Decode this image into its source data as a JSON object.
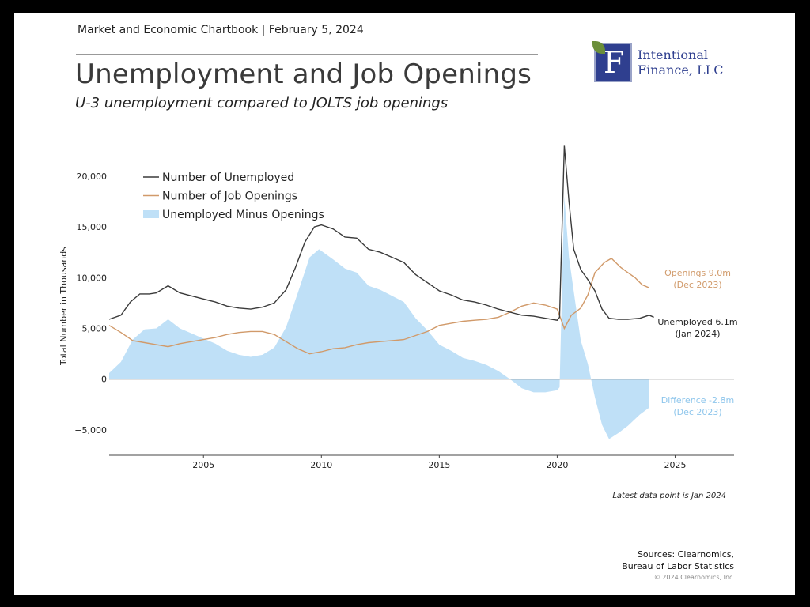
{
  "header": {
    "chartbook": "Market and Economic Chartbook | February 5, 2024",
    "title": "Unemployment and Job Openings",
    "subtitle": "U-3 unemployment compared to JOLTS job openings"
  },
  "logo": {
    "mark": "F",
    "line1": "Intentional",
    "line2": "Finance, LLC"
  },
  "footer": {
    "note": "Latest data point is Jan 2024",
    "sources_line1": "Sources: Clearnomics,",
    "sources_line2": "Bureau of Labor Statistics",
    "copyright": "© 2024 Clearnomics, Inc."
  },
  "colors": {
    "unemployed": "#3a3a3a",
    "openings": "#d19a6a",
    "difference": "#bfe0f7",
    "difference_label": "#8ec6ec"
  },
  "chart_data": {
    "type": "line",
    "ylabel": "Total Number in Thousands",
    "xlabel": "",
    "xlim": [
      2001.0,
      2027.5
    ],
    "ylim": [
      -7500,
      23500
    ],
    "x_ticks": [
      2005,
      2010,
      2015,
      2020,
      2025
    ],
    "y_ticks": [
      -5000,
      0,
      5000,
      10000,
      15000,
      20000
    ],
    "y_tick_labels": [
      "−5,000",
      "0",
      "5,000",
      "10,000",
      "15,000",
      "20,000"
    ],
    "grid": false,
    "legend": {
      "position": "top-left",
      "entries": [
        "Number of Unemployed",
        "Number of Job Openings",
        "Unemployed Minus Openings"
      ]
    },
    "series": [
      {
        "name": "Number of Unemployed",
        "points": [
          [
            2001.0,
            5900
          ],
          [
            2001.5,
            6300
          ],
          [
            2001.9,
            7600
          ],
          [
            2002.3,
            8400
          ],
          [
            2002.7,
            8400
          ],
          [
            2003.0,
            8500
          ],
          [
            2003.5,
            9200
          ],
          [
            2004.0,
            8500
          ],
          [
            2004.5,
            8200
          ],
          [
            2005.0,
            7900
          ],
          [
            2005.5,
            7600
          ],
          [
            2006.0,
            7200
          ],
          [
            2006.5,
            7000
          ],
          [
            2007.0,
            6900
          ],
          [
            2007.5,
            7100
          ],
          [
            2008.0,
            7500
          ],
          [
            2008.5,
            8800
          ],
          [
            2008.9,
            11000
          ],
          [
            2009.3,
            13500
          ],
          [
            2009.7,
            15000
          ],
          [
            2010.0,
            15200
          ],
          [
            2010.5,
            14800
          ],
          [
            2011.0,
            14000
          ],
          [
            2011.5,
            13900
          ],
          [
            2012.0,
            12800
          ],
          [
            2012.5,
            12500
          ],
          [
            2013.0,
            12000
          ],
          [
            2013.5,
            11500
          ],
          [
            2014.0,
            10300
          ],
          [
            2014.5,
            9500
          ],
          [
            2015.0,
            8700
          ],
          [
            2015.5,
            8300
          ],
          [
            2016.0,
            7800
          ],
          [
            2016.5,
            7600
          ],
          [
            2017.0,
            7300
          ],
          [
            2017.5,
            6900
          ],
          [
            2018.0,
            6600
          ],
          [
            2018.5,
            6300
          ],
          [
            2019.0,
            6200
          ],
          [
            2019.5,
            6000
          ],
          [
            2020.0,
            5800
          ],
          [
            2020.1,
            6100
          ],
          [
            2020.3,
            23000
          ],
          [
            2020.5,
            17500
          ],
          [
            2020.7,
            12800
          ],
          [
            2021.0,
            10800
          ],
          [
            2021.3,
            9800
          ],
          [
            2021.6,
            8700
          ],
          [
            2021.9,
            6900
          ],
          [
            2022.2,
            6000
          ],
          [
            2022.6,
            5900
          ],
          [
            2023.0,
            5900
          ],
          [
            2023.5,
            6000
          ],
          [
            2023.9,
            6300
          ],
          [
            2024.1,
            6100
          ]
        ]
      },
      {
        "name": "Number of Job Openings",
        "points": [
          [
            2001.0,
            5300
          ],
          [
            2001.5,
            4600
          ],
          [
            2002.0,
            3800
          ],
          [
            2002.5,
            3600
          ],
          [
            2003.0,
            3400
          ],
          [
            2003.5,
            3200
          ],
          [
            2004.0,
            3500
          ],
          [
            2004.5,
            3700
          ],
          [
            2005.0,
            3900
          ],
          [
            2005.5,
            4100
          ],
          [
            2006.0,
            4400
          ],
          [
            2006.5,
            4600
          ],
          [
            2007.0,
            4700
          ],
          [
            2007.5,
            4700
          ],
          [
            2008.0,
            4400
          ],
          [
            2008.5,
            3700
          ],
          [
            2009.0,
            3000
          ],
          [
            2009.5,
            2500
          ],
          [
            2010.0,
            2700
          ],
          [
            2010.5,
            3000
          ],
          [
            2011.0,
            3100
          ],
          [
            2011.5,
            3400
          ],
          [
            2012.0,
            3600
          ],
          [
            2012.5,
            3700
          ],
          [
            2013.0,
            3800
          ],
          [
            2013.5,
            3900
          ],
          [
            2014.0,
            4300
          ],
          [
            2014.5,
            4700
          ],
          [
            2015.0,
            5300
          ],
          [
            2015.5,
            5500
          ],
          [
            2016.0,
            5700
          ],
          [
            2016.5,
            5800
          ],
          [
            2017.0,
            5900
          ],
          [
            2017.5,
            6100
          ],
          [
            2018.0,
            6600
          ],
          [
            2018.5,
            7200
          ],
          [
            2019.0,
            7500
          ],
          [
            2019.5,
            7300
          ],
          [
            2020.0,
            6900
          ],
          [
            2020.3,
            5000
          ],
          [
            2020.6,
            6300
          ],
          [
            2021.0,
            7000
          ],
          [
            2021.3,
            8300
          ],
          [
            2021.6,
            10500
          ],
          [
            2022.0,
            11500
          ],
          [
            2022.3,
            11900
          ],
          [
            2022.7,
            11000
          ],
          [
            2023.0,
            10500
          ],
          [
            2023.3,
            10000
          ],
          [
            2023.6,
            9300
          ],
          [
            2023.9,
            9000
          ]
        ]
      },
      {
        "name": "Unemployed Minus Openings",
        "points": [
          [
            2001.0,
            600
          ],
          [
            2001.5,
            1700
          ],
          [
            2002.0,
            3900
          ],
          [
            2002.5,
            4900
          ],
          [
            2003.0,
            5000
          ],
          [
            2003.5,
            5900
          ],
          [
            2004.0,
            5000
          ],
          [
            2004.5,
            4500
          ],
          [
            2005.0,
            4000
          ],
          [
            2005.5,
            3500
          ],
          [
            2006.0,
            2800
          ],
          [
            2006.5,
            2400
          ],
          [
            2007.0,
            2200
          ],
          [
            2007.5,
            2400
          ],
          [
            2008.0,
            3100
          ],
          [
            2008.5,
            5100
          ],
          [
            2009.0,
            8500
          ],
          [
            2009.5,
            12000
          ],
          [
            2009.9,
            12800
          ],
          [
            2010.5,
            11800
          ],
          [
            2011.0,
            10900
          ],
          [
            2011.5,
            10500
          ],
          [
            2012.0,
            9200
          ],
          [
            2012.5,
            8800
          ],
          [
            2013.0,
            8200
          ],
          [
            2013.5,
            7600
          ],
          [
            2014.0,
            6000
          ],
          [
            2014.5,
            4800
          ],
          [
            2015.0,
            3400
          ],
          [
            2015.5,
            2800
          ],
          [
            2016.0,
            2100
          ],
          [
            2016.5,
            1800
          ],
          [
            2017.0,
            1400
          ],
          [
            2017.5,
            800
          ],
          [
            2018.0,
            0
          ],
          [
            2018.5,
            -900
          ],
          [
            2019.0,
            -1300
          ],
          [
            2019.5,
            -1300
          ],
          [
            2020.0,
            -1100
          ],
          [
            2020.1,
            -800
          ],
          [
            2020.3,
            18000
          ],
          [
            2020.5,
            12000
          ],
          [
            2020.8,
            7000
          ],
          [
            2021.0,
            3800
          ],
          [
            2021.3,
            1500
          ],
          [
            2021.6,
            -1800
          ],
          [
            2021.9,
            -4500
          ],
          [
            2022.2,
            -5900
          ],
          [
            2022.6,
            -5300
          ],
          [
            2023.0,
            -4600
          ],
          [
            2023.5,
            -3500
          ],
          [
            2023.9,
            -2800
          ]
        ]
      }
    ],
    "annotations": [
      {
        "series": "Number of Job Openings",
        "line1": "Openings 9.0m",
        "line2": "(Dec 2023)"
      },
      {
        "series": "Number of Unemployed",
        "line1": "Unemployed 6.1m",
        "line2": "(Jan 2024)"
      },
      {
        "series": "Unemployed Minus Openings",
        "line1": "Difference -2.8m",
        "line2": "(Dec 2023)"
      }
    ]
  }
}
